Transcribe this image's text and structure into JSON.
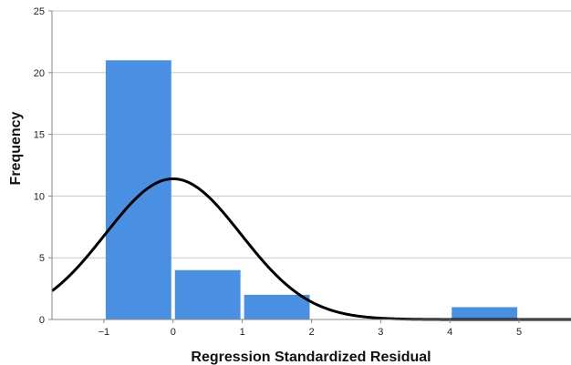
{
  "chart_data": {
    "type": "bar",
    "title": "",
    "xlabel": "Regression Standardized Residual",
    "ylabel": "Frequency",
    "bins": [
      {
        "x0": -1,
        "x1": 0,
        "value": 21
      },
      {
        "x0": 0,
        "x1": 1,
        "value": 4
      },
      {
        "x0": 1,
        "x1": 2,
        "value": 2
      },
      {
        "x0": 2,
        "x1": 3,
        "value": 0
      },
      {
        "x0": 3,
        "x1": 4,
        "value": 0
      },
      {
        "x0": 4,
        "x1": 5,
        "value": 1
      }
    ],
    "xlim": [
      -1.75,
      5.75
    ],
    "ylim": [
      0,
      25
    ],
    "x_ticks": [
      -1,
      0,
      1,
      2,
      3,
      4,
      5
    ],
    "x_tick_labels": [
      "−1",
      "0",
      "1",
      "2",
      "3",
      "4",
      "5"
    ],
    "y_ticks": [
      0,
      5,
      10,
      15,
      20,
      25
    ],
    "y_tick_labels": [
      "0",
      "5",
      "10",
      "15",
      "20",
      "25"
    ],
    "grid": "horizontal",
    "bar_color": "#4a90e2",
    "normal_curve": {
      "mean": 0,
      "std": 0.98,
      "n": 28,
      "bin_width": 1,
      "color": "#000000"
    }
  }
}
